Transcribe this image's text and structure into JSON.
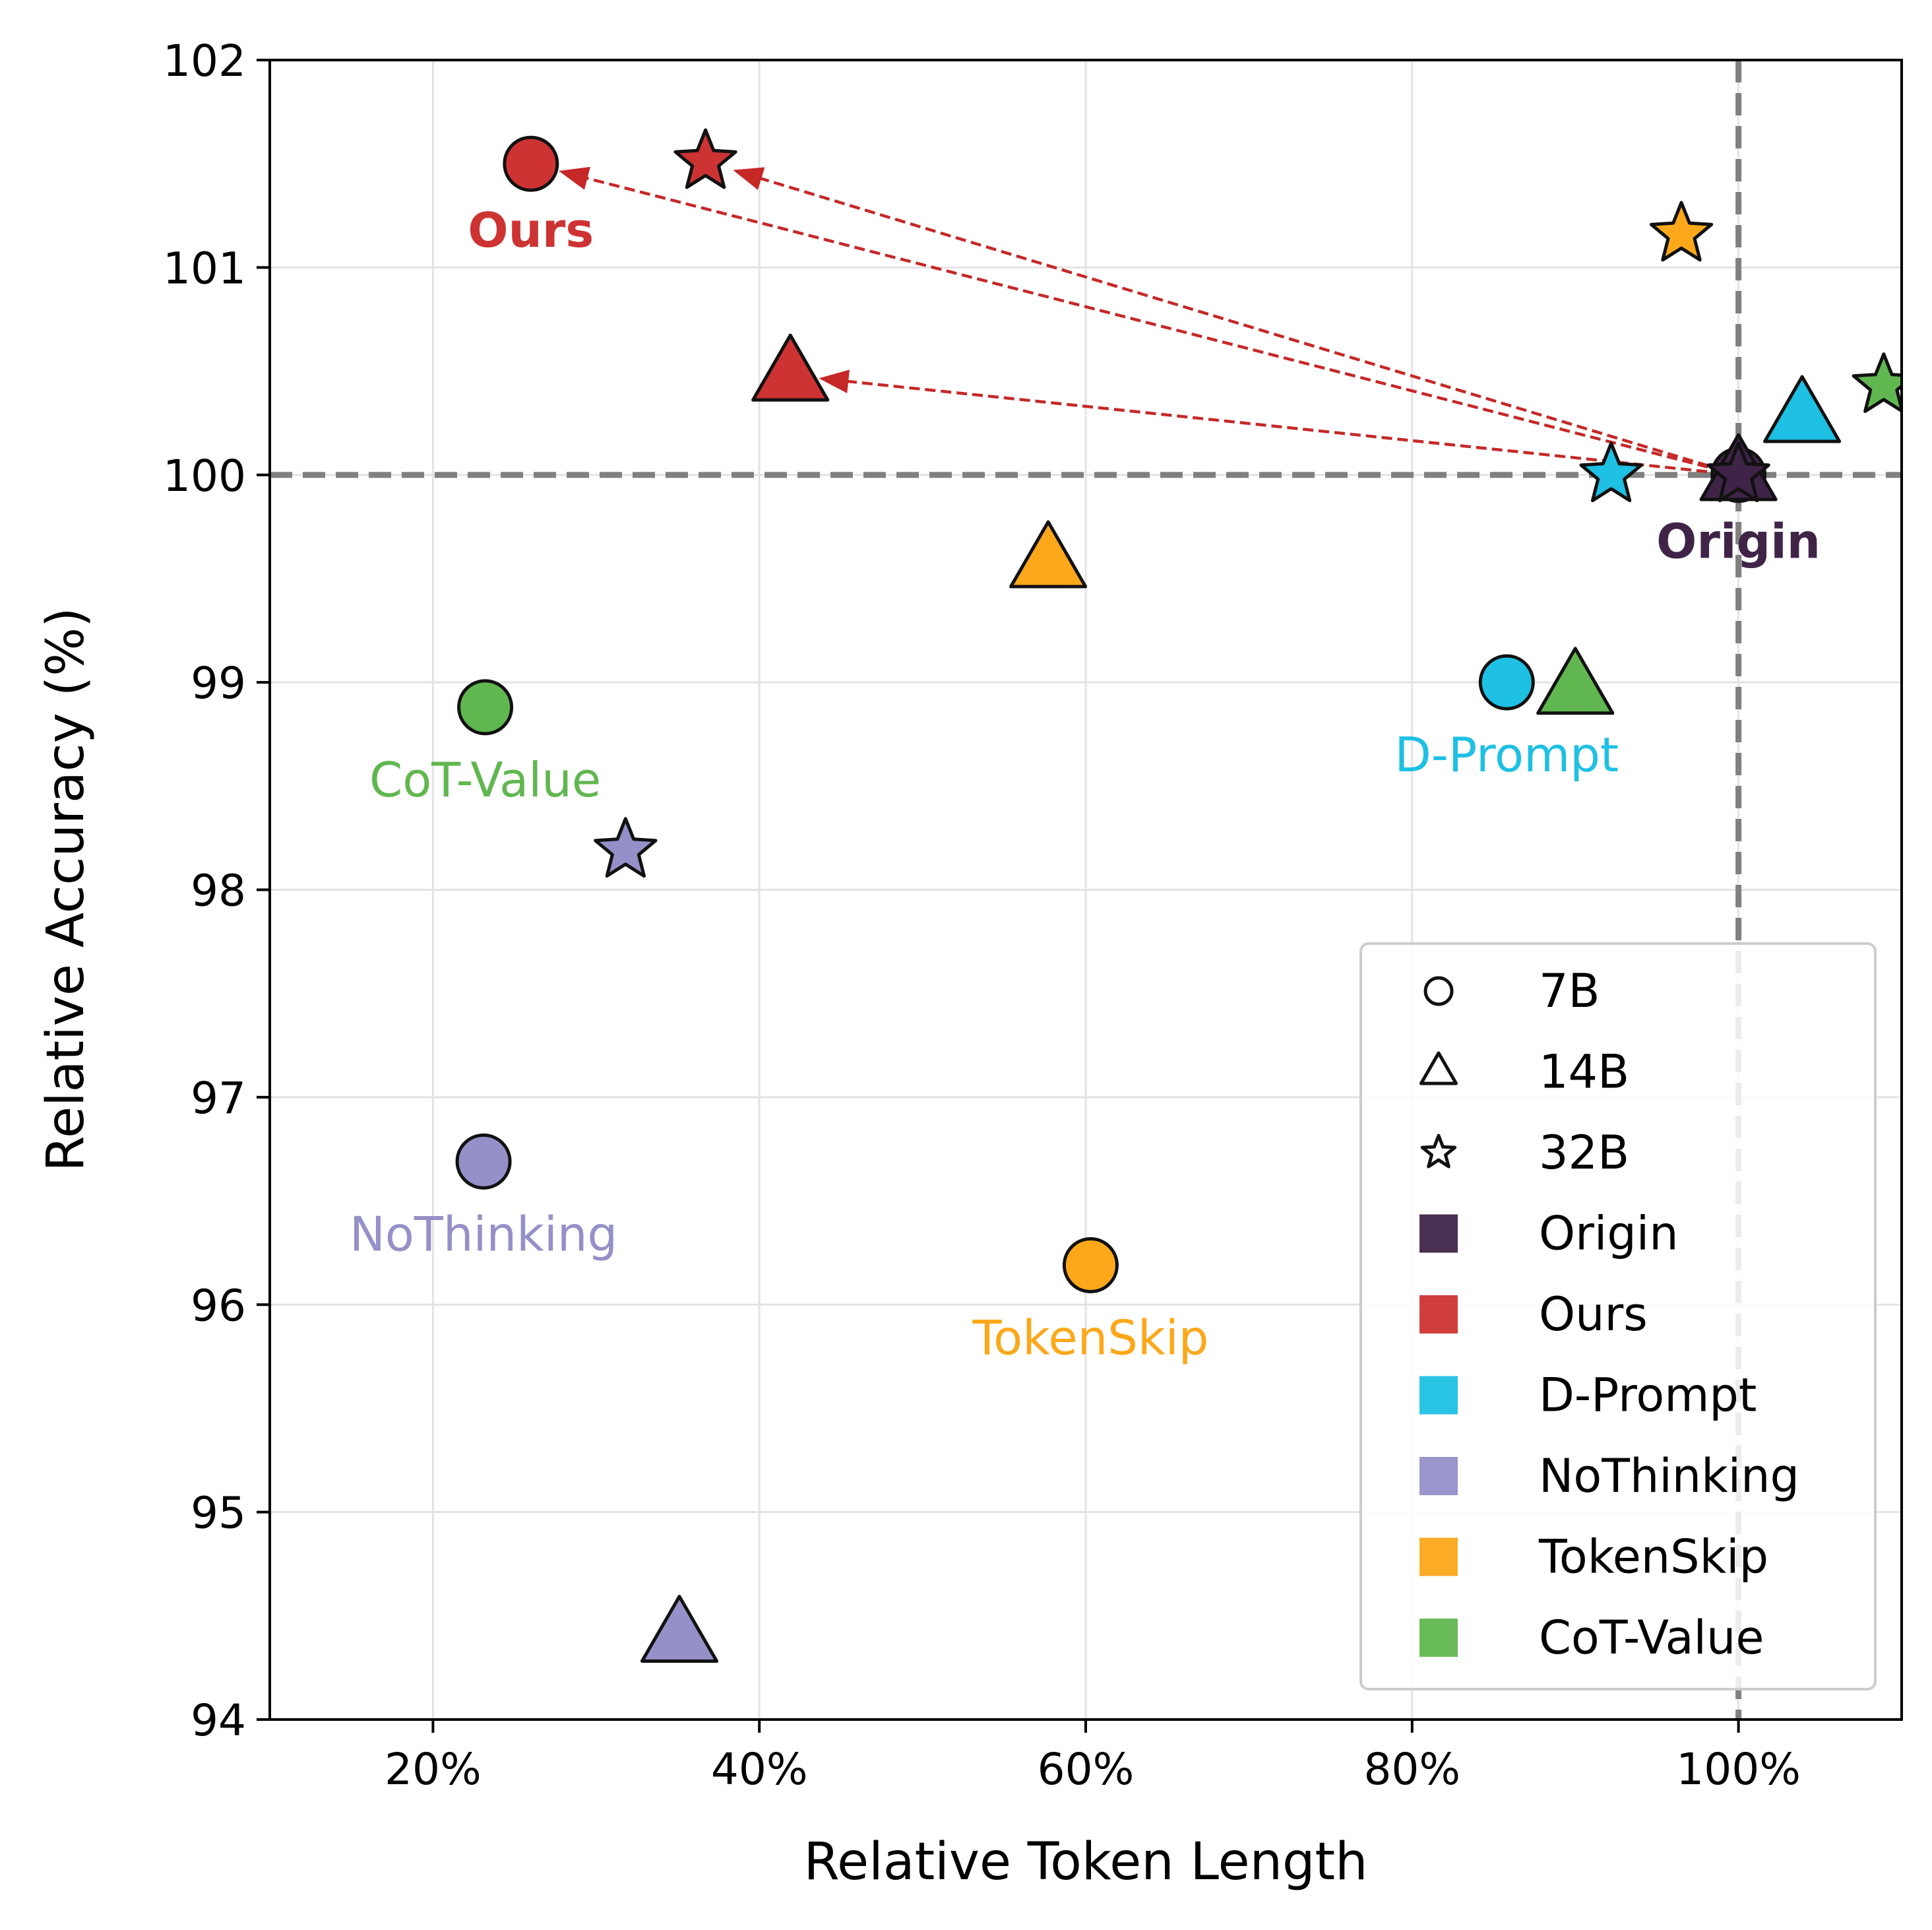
{
  "chart_data": {
    "type": "scatter",
    "title": "",
    "xlabel": "Relative Token Length",
    "ylabel": "Relative Accuracy (%)",
    "xlim": [
      10,
      110
    ],
    "ylim": [
      94,
      102
    ],
    "xticks": [
      20,
      40,
      60,
      80,
      100
    ],
    "xtick_labels": [
      "20%",
      "40%",
      "60%",
      "80%",
      "100%"
    ],
    "yticks": [
      94,
      95,
      96,
      97,
      98,
      99,
      100,
      101,
      102
    ],
    "ytick_labels": [
      "94",
      "95",
      "96",
      "97",
      "98",
      "99",
      "100",
      "101",
      "102"
    ],
    "grid": true,
    "reference_lines": {
      "x": 100,
      "y": 100
    },
    "methods": [
      {
        "name": "Origin",
        "color": "#3f2448"
      },
      {
        "name": "Ours",
        "color": "#cd3333"
      },
      {
        "name": "D-Prompt",
        "color": "#1ec0e3"
      },
      {
        "name": "NoThinking",
        "color": "#9590c8"
      },
      {
        "name": "TokenSkip",
        "color": "#fca81a"
      },
      {
        "name": "CoT-Value",
        "color": "#60b74f"
      }
    ],
    "sizes": [
      {
        "name": "7B",
        "marker": "circle"
      },
      {
        "name": "14B",
        "marker": "triangle"
      },
      {
        "name": "32B",
        "marker": "star"
      }
    ],
    "points": [
      {
        "method": "Origin",
        "size": "7B",
        "x": 100,
        "y": 100
      },
      {
        "method": "Origin",
        "size": "14B",
        "x": 100,
        "y": 100
      },
      {
        "method": "Origin",
        "size": "32B",
        "x": 100,
        "y": 100
      },
      {
        "method": "Ours",
        "size": "7B",
        "x": 26,
        "y": 101.5
      },
      {
        "method": "Ours",
        "size": "14B",
        "x": 41.9,
        "y": 100.48
      },
      {
        "method": "Ours",
        "size": "32B",
        "x": 36.7,
        "y": 101.51
      },
      {
        "method": "D-Prompt",
        "size": "7B",
        "x": 85.8,
        "y": 99.0
      },
      {
        "method": "D-Prompt",
        "size": "14B",
        "x": 103.9,
        "y": 100.28
      },
      {
        "method": "D-Prompt",
        "size": "32B",
        "x": 92.2,
        "y": 100.0
      },
      {
        "method": "NoThinking",
        "size": "7B",
        "x": 23.1,
        "y": 96.69
      },
      {
        "method": "NoThinking",
        "size": "14B",
        "x": 35.1,
        "y": 94.4
      },
      {
        "method": "NoThinking",
        "size": "32B",
        "x": 31.8,
        "y": 98.19
      },
      {
        "method": "TokenSkip",
        "size": "7B",
        "x": 60.3,
        "y": 96.19
      },
      {
        "method": "TokenSkip",
        "size": "14B",
        "x": 57.7,
        "y": 99.58
      },
      {
        "method": "TokenSkip",
        "size": "32B",
        "x": 96.5,
        "y": 101.16
      },
      {
        "method": "CoT-Value",
        "size": "7B",
        "x": 23.2,
        "y": 98.88
      },
      {
        "method": "CoT-Value",
        "size": "14B",
        "x": 90.0,
        "y": 98.97
      },
      {
        "method": "CoT-Value",
        "size": "32B",
        "x": 108.9,
        "y": 100.43
      }
    ],
    "arrows": [
      {
        "from": [
          100,
          100
        ],
        "to": [
          26,
          101.5
        ]
      },
      {
        "from": [
          100,
          100
        ],
        "to": [
          36.7,
          101.51
        ]
      },
      {
        "from": [
          100,
          100
        ],
        "to": [
          41.9,
          100.48
        ]
      }
    ],
    "annotations": [
      {
        "text": "Ours",
        "x": 26,
        "y": 101.18,
        "method": "Ours",
        "bold": true
      },
      {
        "text": "Origin",
        "x": 100,
        "y": 99.68,
        "method": "Origin",
        "bold": true
      },
      {
        "text": "D-Prompt",
        "x": 85.8,
        "y": 98.65,
        "method": "D-Prompt",
        "bold": false
      },
      {
        "text": "CoT-Value",
        "x": 23.2,
        "y": 98.53,
        "method": "CoT-Value",
        "bold": false
      },
      {
        "text": "NoThinking",
        "x": 23.1,
        "y": 96.34,
        "method": "NoThinking",
        "bold": false
      },
      {
        "text": "TokenSkip",
        "x": 60.3,
        "y": 95.84,
        "method": "TokenSkip",
        "bold": false
      }
    ],
    "legend": {
      "location": "lower-right",
      "entries": [
        {
          "label": "7B",
          "marker": "circle"
        },
        {
          "label": "14B",
          "marker": "triangle"
        },
        {
          "label": "32B",
          "marker": "star"
        },
        {
          "label": "Origin",
          "method": "Origin"
        },
        {
          "label": "Ours",
          "method": "Ours"
        },
        {
          "label": "D-Prompt",
          "method": "D-Prompt"
        },
        {
          "label": "NoThinking",
          "method": "NoThinking"
        },
        {
          "label": "TokenSkip",
          "method": "TokenSkip"
        },
        {
          "label": "CoT-Value",
          "method": "CoT-Value"
        }
      ]
    }
  }
}
